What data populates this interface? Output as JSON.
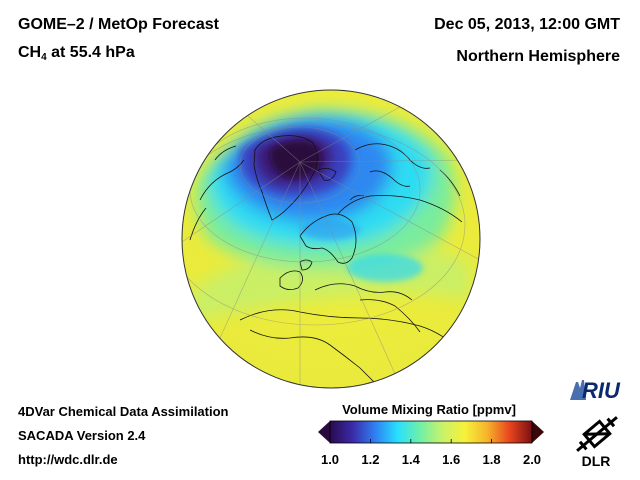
{
  "header": {
    "title_part1": "GOME–2 / MetOp Forecast",
    "species_main": "CH",
    "species_sub": "4",
    "species_rest": " at 55.4 hPa",
    "date": "Dec 05, 2013, 12:00 GMT",
    "region": "Northern Hemisphere"
  },
  "footer": {
    "line1": "4DVar Chemical Data Assimilation",
    "line2": "SACADA Version 2.4",
    "line3": "http://wdc.dlr.de"
  },
  "colorbar": {
    "title": "Volume Mixing Ratio [ppmv]",
    "min": 1.0,
    "max": 2.0,
    "ticks": [
      "1.0",
      "1.2",
      "1.4",
      "1.6",
      "1.8",
      "2.0"
    ],
    "colors": [
      "#2a0a4e",
      "#3a2aa8",
      "#2f7ff2",
      "#27dfff",
      "#6ff0a8",
      "#c8f26a",
      "#f6f23a",
      "#f6b42c",
      "#e8451e",
      "#7a0f12"
    ]
  },
  "logos": {
    "riu": "RIU",
    "dlr": "DLR"
  }
}
